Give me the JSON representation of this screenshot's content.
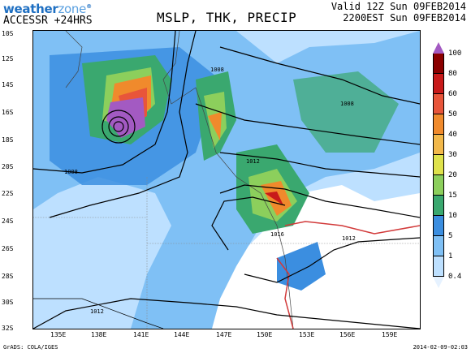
{
  "header": {
    "logo_main": "weather",
    "logo_zone": "zone",
    "logo_reg": "®",
    "model": "ACCESSR +24HRS",
    "title": "MSLP, THK, PRECIP",
    "valid_line1": "Valid 12Z Sun 09FEB2014",
    "valid_line2": "2200EST Sun 09FEB2014"
  },
  "map": {
    "lat_labels": [
      "10S",
      "12S",
      "14S",
      "16S",
      "18S",
      "20S",
      "22S",
      "24S",
      "26S",
      "28S",
      "30S",
      "32S"
    ],
    "lon_labels": [
      "135E",
      "138E",
      "141E",
      "144E",
      "147E",
      "150E",
      "153E",
      "156E",
      "159E"
    ],
    "pressure_labels": [
      "1008",
      "1008",
      "1008",
      "1012",
      "1016",
      "1012",
      "1012"
    ]
  },
  "legend": {
    "labels": [
      "100",
      "80",
      "60",
      "50",
      "40",
      "30",
      "20",
      "15",
      "10",
      "5",
      "1",
      "0.4"
    ],
    "colors": [
      "#a35ac2",
      "#8b0000",
      "#c81a1a",
      "#e8553a",
      "#f08a2c",
      "#f2b84a",
      "#dfe24b",
      "#8ccf5c",
      "#3aa86f",
      "#3b8ee0",
      "#7fc0f5",
      "#bde0ff",
      "#e6f2ff"
    ]
  },
  "footer": {
    "credit": "GrADS: COLA/IGES",
    "timestamp": "2014-02-09-02:03"
  }
}
